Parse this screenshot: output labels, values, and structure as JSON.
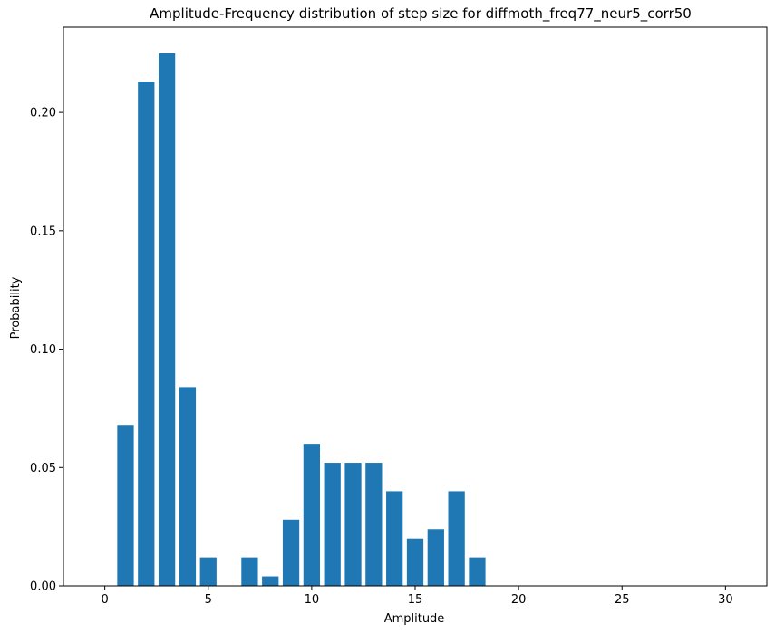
{
  "chart_data": {
    "type": "bar",
    "title": "Amplitude-Frequency distribution of step size for diffmoth_freq77_neur5_corr50",
    "xlabel": "Amplitude",
    "ylabel": "Probability",
    "xlim": [
      -2,
      32
    ],
    "ylim": [
      0,
      0.236
    ],
    "xticks": [
      0,
      5,
      10,
      15,
      20,
      25,
      30
    ],
    "yticks": [
      0.0,
      0.05,
      0.1,
      0.15,
      0.2
    ],
    "xtick_labels": [
      "0",
      "5",
      "10",
      "15",
      "20",
      "25",
      "30"
    ],
    "ytick_labels": [
      "0.00",
      "0.05",
      "0.10",
      "0.15",
      "0.20"
    ],
    "bar_color": "#1f77b4",
    "grid": false,
    "bars": [
      {
        "x": 1,
        "value": 0.068
      },
      {
        "x": 2,
        "value": 0.213
      },
      {
        "x": 3,
        "value": 0.225
      },
      {
        "x": 4,
        "value": 0.084
      },
      {
        "x": 5,
        "value": 0.012
      },
      {
        "x": 7,
        "value": 0.012
      },
      {
        "x": 8,
        "value": 0.004
      },
      {
        "x": 9,
        "value": 0.028
      },
      {
        "x": 10,
        "value": 0.06
      },
      {
        "x": 11,
        "value": 0.052
      },
      {
        "x": 12,
        "value": 0.052
      },
      {
        "x": 13,
        "value": 0.052
      },
      {
        "x": 14,
        "value": 0.04
      },
      {
        "x": 15,
        "value": 0.02
      },
      {
        "x": 16,
        "value": 0.024
      },
      {
        "x": 17,
        "value": 0.04
      },
      {
        "x": 18,
        "value": 0.012
      }
    ]
  }
}
